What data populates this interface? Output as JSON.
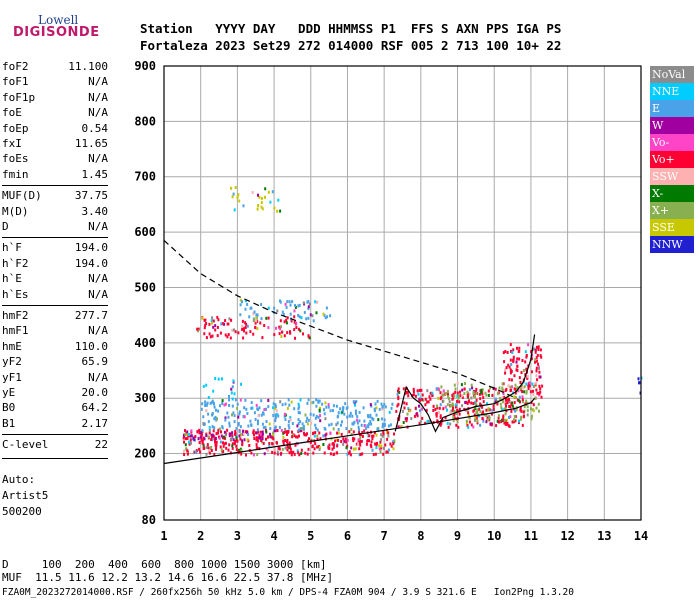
{
  "logo": {
    "top": "Lowell",
    "bottom": "DIGISONDE"
  },
  "header": {
    "line1": "Station   YYYY DAY   DDD HHMMSS P1  FFS S AXN PPS IGA PS",
    "line2": "Fortaleza 2023 Set29 272 014000 RSF 005 2 713 100 10+ 22"
  },
  "params": [
    {
      "k": "foF2",
      "v": "11.100"
    },
    {
      "k": "foF1",
      "v": "N/A"
    },
    {
      "k": "foF1p",
      "v": "N/A"
    },
    {
      "k": "foE",
      "v": "N/A"
    },
    {
      "k": "foEp",
      "v": "0.54"
    },
    {
      "k": "fxI",
      "v": "11.65"
    },
    {
      "k": "foEs",
      "v": "N/A"
    },
    {
      "k": "fmin",
      "v": "1.45"
    },
    {
      "k": "MUF(D)",
      "v": "37.75"
    },
    {
      "k": "M(D)",
      "v": "3.40"
    },
    {
      "k": "D",
      "v": "N/A"
    },
    {
      "k": "h`F",
      "v": "194.0"
    },
    {
      "k": "h`F2",
      "v": "194.0"
    },
    {
      "k": "h`E",
      "v": "N/A"
    },
    {
      "k": "h`Es",
      "v": "N/A"
    },
    {
      "k": "hmF2",
      "v": "277.7"
    },
    {
      "k": "hmF1",
      "v": "N/A"
    },
    {
      "k": "hmE",
      "v": "110.0"
    },
    {
      "k": "yF2",
      "v": "65.9"
    },
    {
      "k": "yF1",
      "v": "N/A"
    },
    {
      "k": "yE",
      "v": "20.0"
    },
    {
      "k": "B0",
      "v": "64.2"
    },
    {
      "k": "B1",
      "v": "2.17"
    },
    {
      "k": "C-level",
      "v": "22"
    }
  ],
  "auto": {
    "l1": "Auto:",
    "l2": "Artist5",
    "l3": "500200"
  },
  "legend": [
    {
      "label": "NoVal",
      "color": "#8c8c8c"
    },
    {
      "label": "NNE",
      "color": "#00ccff"
    },
    {
      "label": "E",
      "color": "#4aa3e8"
    },
    {
      "label": "W",
      "color": "#a000a0"
    },
    {
      "label": "Vo-",
      "color": "#ff44c8"
    },
    {
      "label": "Vo+",
      "color": "#ff0033"
    },
    {
      "label": "SSW",
      "color": "#ffb0b0"
    },
    {
      "label": "X-",
      "color": "#007a00"
    },
    {
      "label": "X+",
      "color": "#88b050"
    },
    {
      "label": "SSE",
      "color": "#c8c800"
    },
    {
      "label": "NNW",
      "color": "#2020d0"
    }
  ],
  "footer": {
    "line1": "D     100  200  400  600  800 1000 1500 3000 [km]",
    "line2": "MUF  11.5 11.6 12.2 13.2 14.6 16.6 22.5 37.8 [MHz]",
    "line3": "FZA0M_2023272014000.RSF / 260fx256h 50 kHz 5.0 km / DPS-4 FZA0M 904 / 3.9 S 321.6 E   Ion2Png 1.3.20"
  },
  "chart_data": {
    "type": "scatter",
    "xlim": [
      1,
      14
    ],
    "ylim": [
      80,
      900
    ],
    "xticks": [
      1,
      2,
      3,
      4,
      5,
      6,
      7,
      8,
      9,
      10,
      11,
      12,
      13,
      14
    ],
    "yticks": [
      80,
      200,
      300,
      400,
      500,
      600,
      700,
      800,
      900
    ],
    "grid": true,
    "legend_position": "right",
    "clusters": [
      {
        "name": "Vo+",
        "x": [
          1.5,
          7.3
        ],
        "y": [
          200,
          245
        ],
        "density": 0.7
      },
      {
        "name": "W",
        "x": [
          1.6,
          4.2
        ],
        "y": [
          225,
          245
        ],
        "density": 0.4
      },
      {
        "name": "E",
        "x": [
          2.0,
          7.2
        ],
        "y": [
          245,
          300
        ],
        "density": 0.45
      },
      {
        "name": "NNE",
        "x": [
          2.0,
          3.2
        ],
        "y": [
          300,
          340
        ],
        "density": 0.15
      },
      {
        "name": "Vo+",
        "x": [
          1.8,
          5.0
        ],
        "y": [
          410,
          450
        ],
        "density": 0.35
      },
      {
        "name": "E",
        "x": [
          3.0,
          5.5
        ],
        "y": [
          440,
          480
        ],
        "density": 0.3
      },
      {
        "name": "SSE",
        "x": [
          2.8,
          4.3
        ],
        "y": [
          640,
          685
        ],
        "density": 0.18
      },
      {
        "name": "Vo+",
        "x": [
          7.3,
          10.8
        ],
        "y": [
          250,
          320
        ],
        "density": 0.55
      },
      {
        "name": "Vo+",
        "x": [
          10.2,
          11.3
        ],
        "y": [
          290,
          400
        ],
        "density": 0.5
      },
      {
        "name": "X+",
        "x": [
          8.5,
          11.2
        ],
        "y": [
          260,
          330
        ],
        "density": 0.3
      },
      {
        "name": "NNW",
        "x": [
          13.9,
          14.0
        ],
        "y": [
          310,
          340
        ],
        "density": 0.8
      }
    ],
    "profile_solid": {
      "x": [
        1,
        2,
        3,
        4,
        5,
        6,
        7,
        8,
        9,
        10,
        10.6,
        11.0,
        11.1
      ],
      "y": [
        182,
        192,
        202,
        212,
        222,
        232,
        242,
        252,
        263,
        274,
        282,
        292,
        300
      ]
    },
    "profile_dashed": {
      "x": [
        1,
        1.5,
        2,
        2.5,
        3,
        4,
        5,
        6,
        7,
        8,
        9,
        10,
        10.6
      ],
      "y": [
        585,
        555,
        525,
        505,
        485,
        455,
        430,
        405,
        385,
        365,
        345,
        318,
        300
      ]
    },
    "trace": {
      "x": [
        7.3,
        7.4,
        7.6,
        7.8,
        8.0,
        8.2,
        8.4,
        8.6,
        9.0,
        9.5,
        10.0,
        10.3,
        10.6,
        10.8,
        11.0,
        11.1
      ],
      "y": [
        240,
        265,
        320,
        300,
        290,
        270,
        240,
        265,
        275,
        285,
        290,
        300,
        312,
        330,
        370,
        415
      ]
    }
  }
}
